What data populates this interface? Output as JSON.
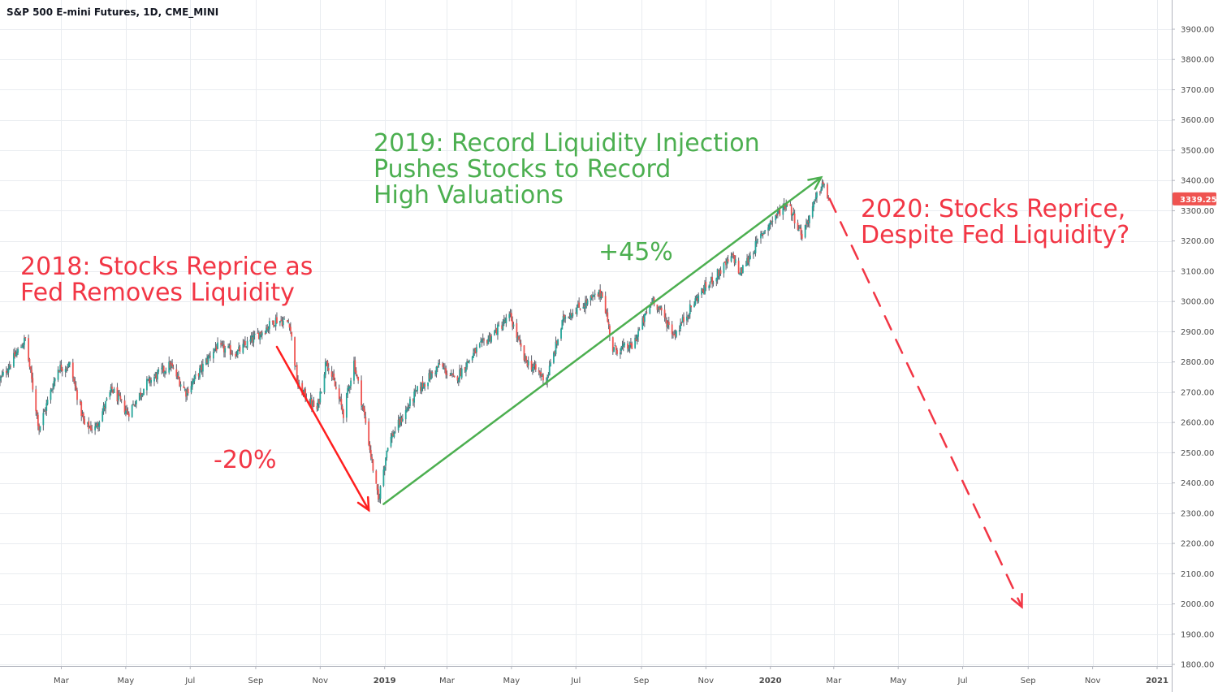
{
  "header": {
    "title": "S&P 500 E-mini Futures, 1D, CME_MINI"
  },
  "price_tag": {
    "value": "3339.25",
    "color": "#ef5350"
  },
  "colors": {
    "up": "#26a69a",
    "down": "#ef5350",
    "wick": "#5d606b",
    "red_annotation": "#f23645",
    "green_annotation": "#4caf50",
    "grid": "#e9ecf0",
    "axis_text": "#4a4a4a"
  },
  "annotations": {
    "a2018": "2018: Stocks Reprice as\nFed Removes Liquidity",
    "a2019": "2019: Record Liquidity Injection\nPushes Stocks to Record\nHigh Valuations",
    "a2020": "2020: Stocks Reprice,\nDespite Fed Liquidity?",
    "drop": "-20%",
    "rise": "+45%"
  },
  "chart_data": {
    "type": "candlestick",
    "title": "S&P 500 E-mini Futures, 1D, CME_MINI",
    "ylim": [
      1800,
      3950
    ],
    "y_ticks": [
      "3900.00",
      "3800.00",
      "3700.00",
      "3600.00",
      "3500.00",
      "3400.00",
      "3300.00",
      "3200.00",
      "3100.00",
      "3000.00",
      "2900.00",
      "2800.00",
      "2700.00",
      "2600.00",
      "2500.00",
      "2400.00",
      "2300.00",
      "2200.00",
      "2100.00",
      "2000.00",
      "1900.00",
      "1800.00"
    ],
    "x_ticks": [
      "Mar",
      "May",
      "Jul",
      "Sep",
      "Nov",
      "2019",
      "Mar",
      "May",
      "Jul",
      "Sep",
      "Nov",
      "2020",
      "Mar",
      "May",
      "Jul",
      "Sep",
      "Nov",
      "2021"
    ],
    "x_range": [
      "2018-01-02",
      "2021-01-15"
    ],
    "last_price": 3339.25,
    "close_path": [
      {
        "date": "2018-01-02",
        "close": 2740
      },
      {
        "date": "2018-01-26",
        "close": 2875
      },
      {
        "date": "2018-02-08",
        "close": 2580
      },
      {
        "date": "2018-02-26",
        "close": 2780
      },
      {
        "date": "2018-03-09",
        "close": 2790
      },
      {
        "date": "2018-03-23",
        "close": 2590
      },
      {
        "date": "2018-04-02",
        "close": 2580
      },
      {
        "date": "2018-04-18",
        "close": 2710
      },
      {
        "date": "2018-05-03",
        "close": 2630
      },
      {
        "date": "2018-05-21",
        "close": 2730
      },
      {
        "date": "2018-06-12",
        "close": 2790
      },
      {
        "date": "2018-06-27",
        "close": 2700
      },
      {
        "date": "2018-07-25",
        "close": 2850
      },
      {
        "date": "2018-08-14",
        "close": 2830
      },
      {
        "date": "2018-09-20",
        "close": 2940
      },
      {
        "date": "2018-10-03",
        "close": 2930
      },
      {
        "date": "2018-10-11",
        "close": 2720
      },
      {
        "date": "2018-10-29",
        "close": 2640
      },
      {
        "date": "2018-11-07",
        "close": 2810
      },
      {
        "date": "2018-11-23",
        "close": 2630
      },
      {
        "date": "2018-12-03",
        "close": 2800
      },
      {
        "date": "2018-12-14",
        "close": 2600
      },
      {
        "date": "2018-12-26",
        "close": 2340
      },
      {
        "date": "2019-01-04",
        "close": 2530
      },
      {
        "date": "2019-01-31",
        "close": 2700
      },
      {
        "date": "2019-02-22",
        "close": 2790
      },
      {
        "date": "2019-03-08",
        "close": 2740
      },
      {
        "date": "2019-03-29",
        "close": 2840
      },
      {
        "date": "2019-04-30",
        "close": 2950
      },
      {
        "date": "2019-05-13",
        "close": 2810
      },
      {
        "date": "2019-06-03",
        "close": 2740
      },
      {
        "date": "2019-06-20",
        "close": 2950
      },
      {
        "date": "2019-07-26",
        "close": 3030
      },
      {
        "date": "2019-08-05",
        "close": 2840
      },
      {
        "date": "2019-08-23",
        "close": 2850
      },
      {
        "date": "2019-09-12",
        "close": 3010
      },
      {
        "date": "2019-10-02",
        "close": 2890
      },
      {
        "date": "2019-10-25",
        "close": 3020
      },
      {
        "date": "2019-11-27",
        "close": 3150
      },
      {
        "date": "2019-12-03",
        "close": 3090
      },
      {
        "date": "2019-12-27",
        "close": 3240
      },
      {
        "date": "2020-01-17",
        "close": 3330
      },
      {
        "date": "2020-01-31",
        "close": 3220
      },
      {
        "date": "2020-02-19",
        "close": 3390
      },
      {
        "date": "2020-02-25",
        "close": 3339.25
      }
    ],
    "arrows": [
      {
        "label": "-20%",
        "from": {
          "date": "2018-09-21",
          "price": 2850
        },
        "to": {
          "date": "2018-12-17",
          "price": 2310
        },
        "style": "solid",
        "color": "#ff1f1f"
      },
      {
        "label": "+45%",
        "from": {
          "date": "2018-12-31",
          "price": 2330
        },
        "to": {
          "date": "2020-02-18",
          "price": 3410
        },
        "style": "solid",
        "color": "#4caf50"
      },
      {
        "label": "",
        "from": {
          "date": "2020-02-26",
          "price": 3340
        },
        "to": {
          "date": "2020-08-26",
          "price": 1990
        },
        "style": "dashed",
        "color": "#f23645"
      }
    ]
  }
}
